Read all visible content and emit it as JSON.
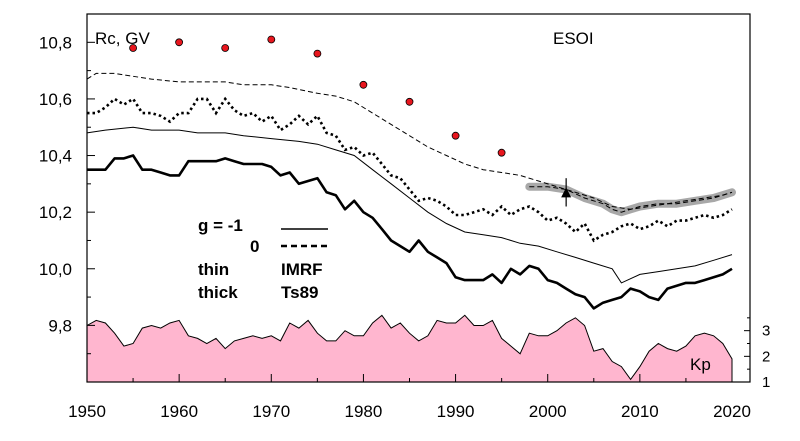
{
  "chart_data": {
    "type": "line",
    "ylabel": "Rc, GV",
    "station": "ESOI",
    "xlim": [
      1950,
      2020
    ],
    "ylim": [
      9.6,
      10.9
    ],
    "x_ticks": [
      "1950",
      "1960",
      "1970",
      "1980",
      "1990",
      "2000",
      "2010",
      "2020"
    ],
    "y_ticks": [
      {
        "value": 9.8,
        "label": "9,8"
      },
      {
        "value": 10.0,
        "label": "10,0"
      },
      {
        "value": 10.2,
        "label": "10,2"
      },
      {
        "value": 10.4,
        "label": "10,4"
      },
      {
        "value": 10.6,
        "label": "10,6"
      },
      {
        "value": 10.8,
        "label": "10,8"
      }
    ],
    "legend": {
      "g_neg1": "g  = -1",
      "g_zero": "0",
      "thin": "thin",
      "thick": "thick",
      "imrf": "IMRF",
      "ts89": "Ts89"
    },
    "series": [
      {
        "style": "dashed-thin",
        "x": [
          1950,
          1951,
          1953,
          1955,
          1957,
          1960,
          1963,
          1965,
          1967,
          1970,
          1972,
          1975,
          1977,
          1979,
          1981,
          1983,
          1985,
          1987,
          1989,
          1991,
          1993,
          1995,
          1997,
          1999,
          2001,
          2003,
          2005,
          2007,
          2009,
          2011,
          2013,
          2015,
          2017,
          2019,
          2020
        ],
        "y": [
          10.67,
          10.69,
          10.69,
          10.68,
          10.67,
          10.66,
          10.66,
          10.66,
          10.65,
          10.65,
          10.64,
          10.62,
          10.61,
          10.59,
          10.55,
          10.51,
          10.47,
          10.43,
          10.4,
          10.37,
          10.35,
          10.34,
          10.33,
          10.31,
          10.29,
          10.27,
          10.25,
          10.22,
          10.21,
          10.22,
          10.23,
          10.24,
          10.25,
          10.26,
          10.27
        ]
      },
      {
        "style": "dotted-thick",
        "x": [
          1950,
          1951,
          1952,
          1953,
          1954,
          1955,
          1956,
          1957,
          1958,
          1959,
          1960,
          1961,
          1962,
          1963,
          1964,
          1965,
          1966,
          1967,
          1968,
          1969,
          1970,
          1971,
          1972,
          1973,
          1974,
          1975,
          1976,
          1977,
          1978,
          1979,
          1980,
          1981,
          1982,
          1983,
          1984,
          1985,
          1986,
          1987,
          1988,
          1989,
          1990,
          1991,
          1992,
          1993,
          1994,
          1995,
          1996,
          1997,
          1998,
          1999,
          2000,
          2001,
          2002,
          2003,
          2004,
          2005,
          2006,
          2007,
          2008,
          2009,
          2010,
          2011,
          2012,
          2013,
          2014,
          2015,
          2016,
          2017,
          2018,
          2019,
          2020
        ],
        "y": [
          10.55,
          10.55,
          10.57,
          10.6,
          10.58,
          10.6,
          10.55,
          10.55,
          10.54,
          10.52,
          10.55,
          10.55,
          10.6,
          10.6,
          10.55,
          10.6,
          10.56,
          10.54,
          10.55,
          10.52,
          10.54,
          10.49,
          10.51,
          10.54,
          10.51,
          10.54,
          10.48,
          10.47,
          10.42,
          10.43,
          10.4,
          10.41,
          10.37,
          10.33,
          10.32,
          10.28,
          10.24,
          10.25,
          10.24,
          10.22,
          10.19,
          10.19,
          10.2,
          10.21,
          10.19,
          10.22,
          10.19,
          10.21,
          10.22,
          10.2,
          10.17,
          10.18,
          10.16,
          10.13,
          10.16,
          10.1,
          10.12,
          10.13,
          10.15,
          10.16,
          10.14,
          10.15,
          10.17,
          10.15,
          10.17,
          10.17,
          10.18,
          10.19,
          10.18,
          10.19,
          10.21
        ]
      },
      {
        "style": "solid-thin",
        "x": [
          1950,
          1952,
          1955,
          1957,
          1960,
          1962,
          1965,
          1967,
          1970,
          1973,
          1975,
          1977,
          1979,
          1981,
          1983,
          1985,
          1987,
          1989,
          1991,
          1993,
          1995,
          1997,
          1999,
          2001,
          2003,
          2005,
          2007,
          2008,
          2010,
          2012,
          2014,
          2016,
          2018,
          2020
        ],
        "y": [
          10.48,
          10.49,
          10.5,
          10.49,
          10.49,
          10.48,
          10.48,
          10.47,
          10.46,
          10.45,
          10.44,
          10.42,
          10.4,
          10.35,
          10.3,
          10.25,
          10.2,
          10.16,
          10.13,
          10.12,
          10.11,
          10.09,
          10.08,
          10.06,
          10.04,
          10.02,
          10.0,
          9.95,
          9.98,
          9.99,
          10.0,
          10.01,
          10.03,
          10.05
        ]
      },
      {
        "style": "solid-thick",
        "x": [
          1950,
          1951,
          1952,
          1953,
          1954,
          1955,
          1956,
          1957,
          1958,
          1959,
          1960,
          1961,
          1962,
          1963,
          1964,
          1965,
          1966,
          1967,
          1968,
          1969,
          1970,
          1971,
          1972,
          1973,
          1974,
          1975,
          1976,
          1977,
          1978,
          1979,
          1980,
          1981,
          1982,
          1983,
          1984,
          1985,
          1986,
          1987,
          1988,
          1989,
          1990,
          1991,
          1992,
          1993,
          1994,
          1995,
          1996,
          1997,
          1998,
          1999,
          2000,
          2001,
          2002,
          2003,
          2004,
          2005,
          2006,
          2007,
          2008,
          2009,
          2010,
          2011,
          2012,
          2013,
          2014,
          2015,
          2016,
          2017,
          2018,
          2019,
          2020
        ],
        "y": [
          10.35,
          10.35,
          10.35,
          10.39,
          10.39,
          10.4,
          10.35,
          10.35,
          10.34,
          10.33,
          10.33,
          10.38,
          10.38,
          10.38,
          10.38,
          10.39,
          10.38,
          10.37,
          10.37,
          10.37,
          10.36,
          10.33,
          10.34,
          10.3,
          10.31,
          10.32,
          10.27,
          10.26,
          10.21,
          10.24,
          10.2,
          10.18,
          10.14,
          10.1,
          10.08,
          10.06,
          10.1,
          10.06,
          10.04,
          10.02,
          9.97,
          9.96,
          9.96,
          9.96,
          9.98,
          9.95,
          10.0,
          9.98,
          10.01,
          10.0,
          9.96,
          9.95,
          9.93,
          9.91,
          9.9,
          9.86,
          9.88,
          9.89,
          9.9,
          9.93,
          9.92,
          9.9,
          9.89,
          9.93,
          9.94,
          9.95,
          9.95,
          9.96,
          9.97,
          9.98,
          10.0
        ]
      },
      {
        "style": "gray-band",
        "x": [
          1998,
          2000,
          2002,
          2004,
          2006,
          2007,
          2008,
          2009,
          2010,
          2012,
          2014,
          2016,
          2018,
          2020
        ],
        "y": [
          10.29,
          10.29,
          10.28,
          10.25,
          10.23,
          10.21,
          10.2,
          10.21,
          10.22,
          10.23,
          10.23,
          10.24,
          10.25,
          10.27
        ]
      }
    ],
    "points": {
      "color": "#e8161e",
      "x": [
        1955,
        1960,
        1965,
        1970,
        1975,
        1980,
        1985,
        1990,
        1995
      ],
      "y": [
        10.78,
        10.8,
        10.78,
        10.81,
        10.76,
        10.65,
        10.59,
        10.47,
        10.41
      ]
    },
    "triangle_marker": {
      "x": 2002,
      "y": 10.27,
      "err": 0.05
    },
    "kp": {
      "label": "Kp",
      "fill_color": "#ffb6cf",
      "range": [
        1,
        4
      ],
      "ticks": [
        "1",
        "2",
        "3"
      ],
      "x": [
        1950,
        1951,
        1952,
        1953,
        1954,
        1955,
        1956,
        1957,
        1958,
        1959,
        1960,
        1961,
        1962,
        1963,
        1964,
        1965,
        1966,
        1967,
        1968,
        1969,
        1970,
        1971,
        1972,
        1973,
        1974,
        1975,
        1976,
        1977,
        1978,
        1979,
        1980,
        1981,
        1982,
        1983,
        1984,
        1985,
        1986,
        1987,
        1988,
        1989,
        1990,
        1991,
        1992,
        1993,
        1994,
        1995,
        1996,
        1997,
        1998,
        1999,
        2000,
        2001,
        2002,
        2003,
        2004,
        2005,
        2006,
        2007,
        2008,
        2009,
        2010,
        2011,
        2012,
        2013,
        2014,
        2015,
        2016,
        2017,
        2018,
        2019,
        2020
      ],
      "y": [
        3.2,
        3.4,
        3.3,
        2.9,
        2.4,
        2.5,
        3.1,
        3.2,
        3.1,
        3.3,
        3.4,
        2.8,
        2.7,
        2.5,
        2.7,
        2.3,
        2.6,
        2.7,
        2.8,
        2.7,
        2.8,
        2.6,
        3.3,
        3.1,
        3.4,
        2.9,
        2.6,
        2.6,
        3.0,
        2.8,
        2.8,
        3.3,
        3.6,
        3.1,
        3.3,
        2.9,
        2.6,
        2.8,
        3.4,
        3.3,
        3.3,
        3.6,
        3.2,
        3.2,
        3.4,
        2.7,
        2.4,
        2.1,
        2.9,
        2.8,
        2.8,
        3.0,
        3.3,
        3.5,
        3.2,
        2.2,
        2.3,
        1.8,
        1.6,
        1.1,
        1.6,
        2.2,
        2.5,
        2.3,
        2.2,
        2.4,
        2.8,
        2.9,
        2.8,
        2.5,
        1.9
      ]
    }
  }
}
